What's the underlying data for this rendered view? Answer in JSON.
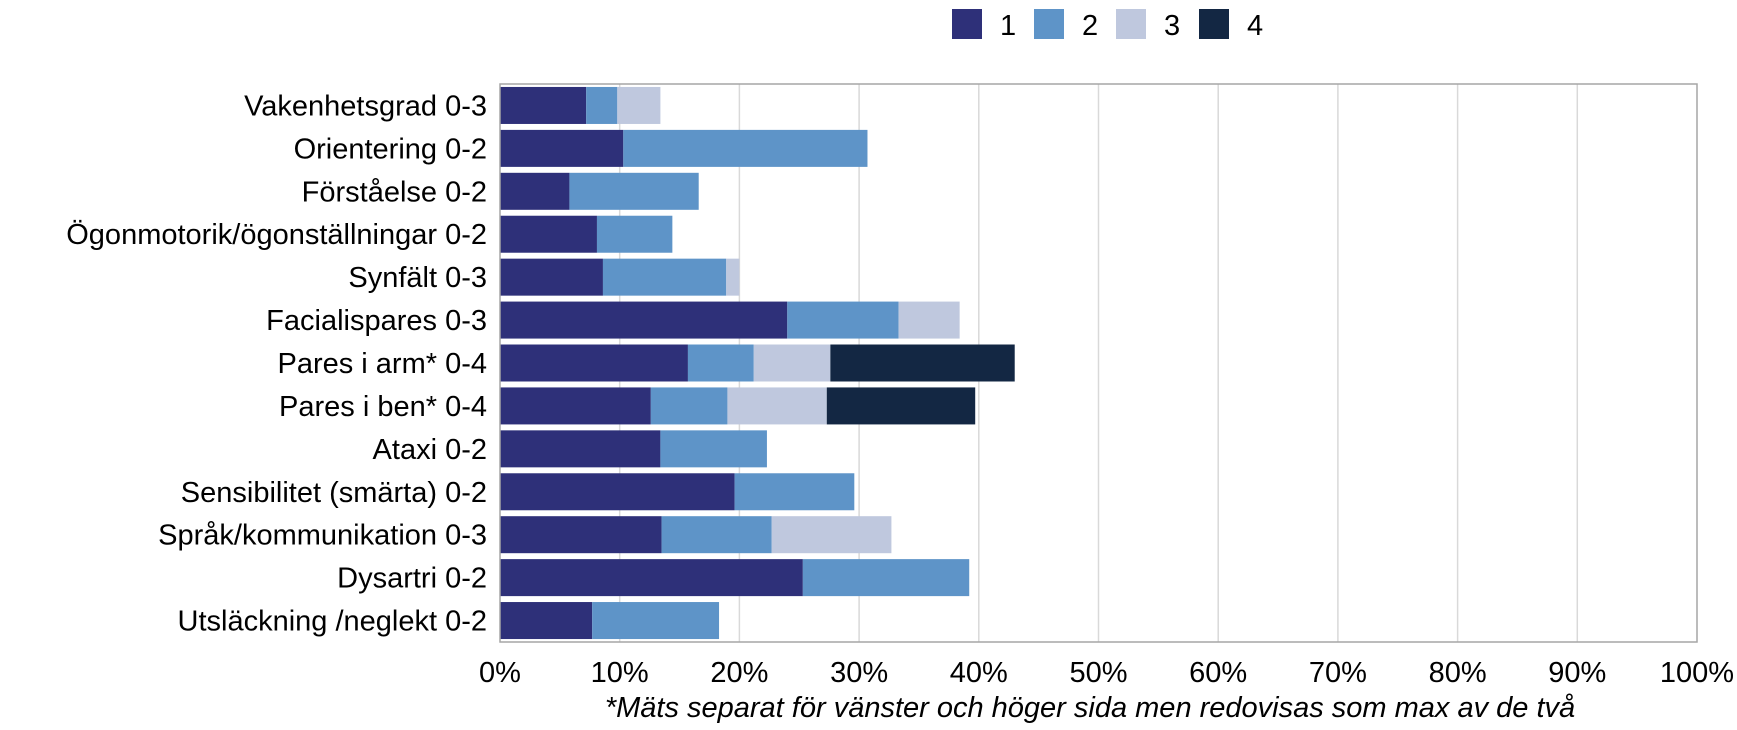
{
  "chart_data": {
    "type": "bar",
    "orientation": "horizontal",
    "stacked": true,
    "categories": [
      "Vakenhetsgrad 0-3",
      "Orientering 0-2",
      "Förståelse 0-2",
      "Ögonmotorik/ögonställningar 0-2",
      "Synfält 0-3",
      "Facialispares 0-3",
      "Pares i arm* 0-4",
      "Pares i ben* 0-4",
      "Ataxi 0-2",
      "Sensibilitet (smärta) 0-2",
      "Språk/kommunikation 0-3",
      "Dysartri 0-2",
      "Utsläckning /neglekt 0-2"
    ],
    "series": [
      {
        "name": "1",
        "color": "#2E3079",
        "values": [
          7.2,
          10.3,
          5.8,
          8.1,
          8.6,
          24.0,
          15.7,
          12.6,
          13.4,
          19.6,
          13.5,
          25.3,
          7.7
        ]
      },
      {
        "name": "2",
        "color": "#5E94C8",
        "values": [
          2.6,
          20.4,
          10.8,
          6.3,
          10.3,
          9.3,
          5.5,
          6.4,
          8.9,
          10.0,
          9.2,
          13.9,
          10.6
        ]
      },
      {
        "name": "3",
        "color": "#BFC8DE",
        "values": [
          3.6,
          0,
          0,
          0,
          1.1,
          5.1,
          6.4,
          8.3,
          0,
          0,
          10.0,
          0,
          0
        ]
      },
      {
        "name": "4",
        "color": "#132743",
        "values": [
          0,
          0,
          0,
          0,
          0,
          0,
          15.4,
          12.4,
          0,
          0,
          0,
          0,
          0
        ]
      }
    ],
    "xlim": [
      0,
      100
    ],
    "x_unit": "%",
    "x_ticks": [
      "0%",
      "10%",
      "20%",
      "30%",
      "40%",
      "50%",
      "60%",
      "70%",
      "80%",
      "90%",
      "100%"
    ],
    "grid": "vertical",
    "legend_position": "top"
  },
  "footnote": "*Mäts separat för vänster och höger sida men redovisas som max av de två"
}
